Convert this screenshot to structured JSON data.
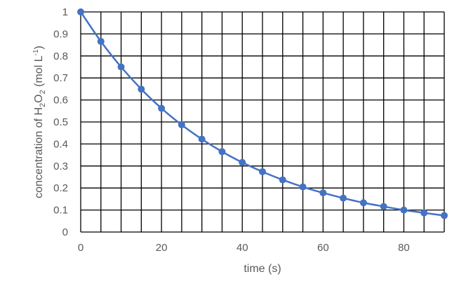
{
  "chart_data": {
    "type": "scatter",
    "xlabel": "time (s)",
    "ylabel": {
      "prefix": "concentration of H",
      "sub1": "2",
      "mid": "O",
      "sub2": "2",
      "unit_open": " (mol L",
      "sup": "-1",
      "unit_close": ")"
    },
    "xlim": [
      0,
      90
    ],
    "ylim": [
      0,
      1
    ],
    "x_ticks": [
      0,
      20,
      40,
      60,
      80
    ],
    "y_ticks": [
      0,
      0.1,
      0.2,
      0.3,
      0.4,
      0.5,
      0.6,
      0.7,
      0.8,
      0.9,
      1
    ],
    "x_grid_step": 5,
    "y_grid_step": 0.1,
    "grid": true,
    "series": [
      {
        "color": "#4472C4",
        "marker": "circle",
        "smooth_line": true,
        "x": [
          0,
          5,
          10,
          15,
          20,
          25,
          30,
          35,
          40,
          45,
          50,
          55,
          60,
          65,
          70,
          75,
          80,
          85,
          90
        ],
        "y": [
          1.0,
          0.866,
          0.75,
          0.649,
          0.562,
          0.487,
          0.422,
          0.365,
          0.316,
          0.274,
          0.237,
          0.205,
          0.178,
          0.154,
          0.133,
          0.116,
          0.1,
          0.087,
          0.075
        ]
      }
    ]
  }
}
